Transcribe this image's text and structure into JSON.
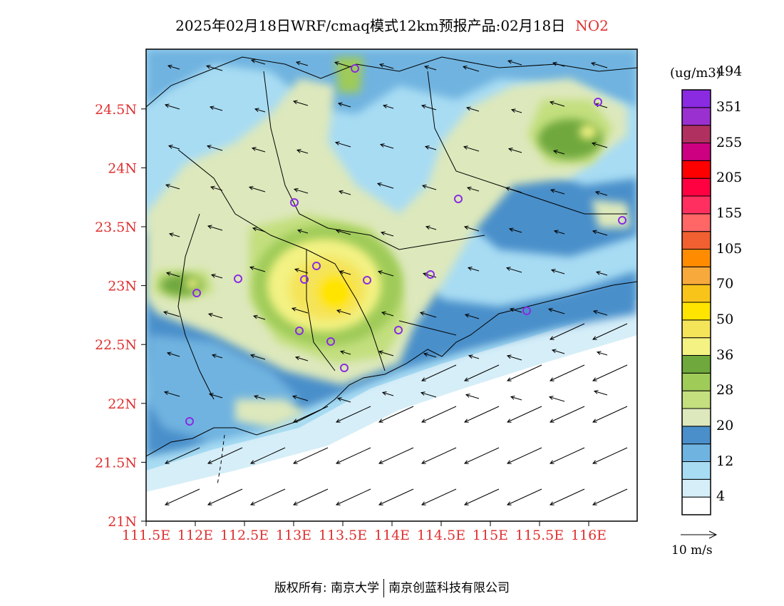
{
  "title": {
    "main": "2025年02月18日WRF/cmaq模式12km预报产品:02月18日",
    "species": "NO2"
  },
  "map": {
    "lat_ticks": [
      "21N",
      "21.5N",
      "22N",
      "22.5N",
      "23N",
      "23.5N",
      "24N",
      "24.5N"
    ],
    "lon_ticks": [
      "111.5E",
      "112E",
      "112.5E",
      "113E",
      "113.5E",
      "114E",
      "114.5E",
      "115E",
      "115.5E",
      "116E"
    ],
    "axis_label_color": "#e03030",
    "extent": {
      "lon": [
        111.5,
        116.3
      ],
      "lat": [
        21.0,
        25.0
      ]
    },
    "station_marker_color": "#8a2be2"
  },
  "colorbar": {
    "unit": "(ug/m3)",
    "tick_labels": [
      "4",
      "12",
      "20",
      "28",
      "36",
      "50",
      "70",
      "105",
      "155",
      "205",
      "255",
      "351",
      "494"
    ],
    "colors_bottom_to_top": [
      "#ffffff",
      "#d6eef8",
      "#a8dcf3",
      "#6fb3e0",
      "#4a8fca",
      "#dde8bc",
      "#c3df7e",
      "#9fcb59",
      "#6fa83c",
      "#f3f283",
      "#f4e45a",
      "#ffe400",
      "#f9c41a",
      "#f7a93b",
      "#ff8c00",
      "#f06030",
      "#ff6666",
      "#ff3060",
      "#ff0040",
      "#ff0000",
      "#cc0080",
      "#b03060",
      "#9b30d0",
      "#8a2be2"
    ]
  },
  "wind_scale": {
    "label": "10 m/s"
  },
  "copyright": {
    "left": "版权所有: 南京大学",
    "right": "南京创蓝科技有限公司"
  }
}
